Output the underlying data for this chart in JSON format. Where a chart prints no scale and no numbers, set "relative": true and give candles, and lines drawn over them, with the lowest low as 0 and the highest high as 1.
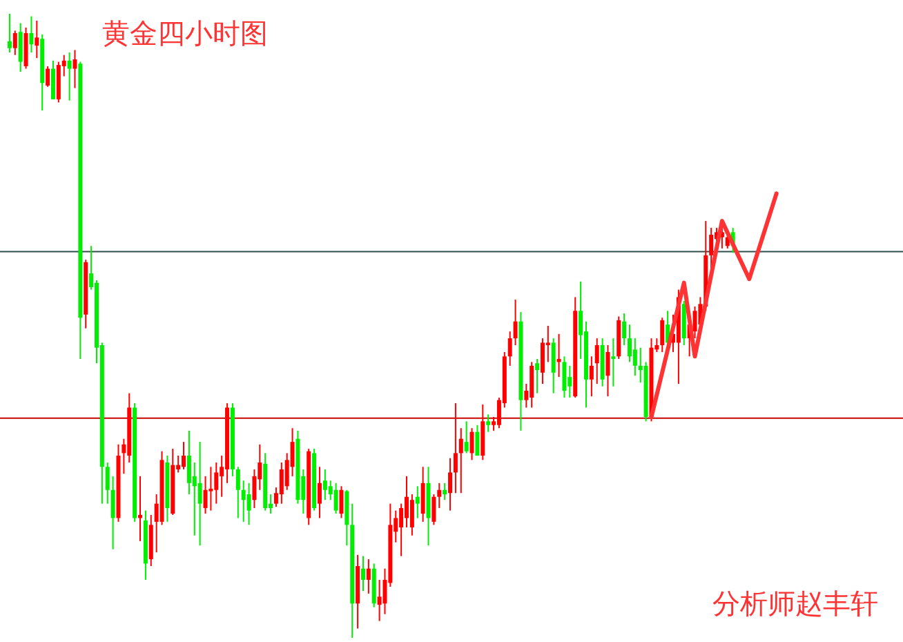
{
  "chart_data": {
    "type": "candlestick",
    "relative": true,
    "title": "黄金四小时图",
    "annotations": [
      "分析师赵丰轩"
    ],
    "categories": [
      null,
      null,
      null,
      null,
      null,
      null,
      null,
      null,
      null,
      null,
      null,
      null,
      null,
      null,
      null,
      null,
      null,
      null,
      null,
      null,
      null,
      null,
      null,
      null,
      null,
      null,
      null,
      null,
      null,
      null,
      null,
      null,
      null,
      null,
      null,
      null,
      null,
      null,
      null,
      null,
      null,
      null,
      null,
      null,
      null,
      null,
      null,
      null,
      null,
      null,
      null,
      null,
      null,
      null,
      null,
      null,
      null,
      null,
      null,
      null,
      null,
      null,
      null,
      null,
      null,
      null,
      null,
      null,
      null,
      null,
      null,
      null,
      null,
      null,
      null,
      null,
      null,
      null,
      null,
      null,
      null,
      null,
      null,
      null,
      null,
      null,
      null,
      null,
      null,
      null,
      null,
      null,
      null,
      null,
      null,
      null,
      null,
      null,
      null,
      null,
      null,
      null,
      null,
      null,
      null,
      null,
      null,
      null,
      null,
      null,
      null,
      null,
      null,
      null,
      null,
      null,
      null,
      null,
      null,
      null,
      null,
      null,
      null,
      null,
      null,
      null,
      null,
      null,
      null,
      null,
      null,
      null,
      null,
      null,
      null,
      null,
      null,
      null,
      null,
      null,
      null,
      null
    ],
    "ohlc": [
      [
        0.956,
        1,
        0.938,
        0.945
      ],
      [
        0.945,
        0.973,
        0.934,
        0.969
      ],
      [
        0.971,
        0.985,
        0.907,
        0.923
      ],
      [
        0.916,
        0.978,
        0.912,
        0.969
      ],
      [
        0.969,
        0.996,
        0.938,
        0.951
      ],
      [
        0.949,
        0.989,
        0.929,
        0.962
      ],
      [
        0.96,
        0.967,
        0.845,
        0.889
      ],
      [
        0.885,
        0.916,
        0.883,
        0.912
      ],
      [
        0.912,
        0.925,
        0.863,
        0.863
      ],
      [
        0.863,
        0.923,
        0.858,
        0.918
      ],
      [
        0.916,
        0.934,
        0.9,
        0.925
      ],
      [
        0.925,
        0.938,
        0.861,
        0.912
      ],
      [
        0.912,
        0.942,
        0.881,
        0.927
      ],
      [
        0.92,
        0.923,
        0.447,
        0.513
      ],
      [
        0.518,
        0.606,
        0.496,
        0.602
      ],
      [
        0.584,
        0.628,
        0.558,
        0.562
      ],
      [
        0.569,
        0.573,
        0.44,
        0.465
      ],
      [
        0.469,
        0.473,
        0.215,
        0.274
      ],
      [
        0.274,
        0.281,
        0.215,
        0.237
      ],
      [
        0.237,
        0.259,
        0.142,
        0.192
      ],
      [
        0.192,
        0.31,
        0.186,
        0.292
      ],
      [
        0.296,
        0.319,
        0.263,
        0.31
      ],
      [
        0.292,
        0.392,
        0.281,
        0.369
      ],
      [
        0.369,
        0.376,
        0.186,
        0.192
      ],
      [
        0.192,
        0.259,
        0.155,
        0.197
      ],
      [
        0.188,
        0.204,
        0.093,
        0.119
      ],
      [
        0.126,
        0.197,
        0.115,
        0.181
      ],
      [
        0.186,
        0.23,
        0.137,
        0.215
      ],
      [
        0.186,
        0.299,
        0.181,
        0.285
      ],
      [
        0.281,
        0.292,
        0.186,
        0.208
      ],
      [
        0.199,
        0.303,
        0.197,
        0.277
      ],
      [
        0.27,
        0.292,
        0.265,
        0.277
      ],
      [
        0.274,
        0.314,
        0.27,
        0.292
      ],
      [
        0.292,
        0.332,
        0.23,
        0.248
      ],
      [
        0.259,
        0.281,
        0.164,
        0.243
      ],
      [
        0.248,
        0.314,
        0.148,
        0.215
      ],
      [
        0.208,
        0.259,
        0.199,
        0.237
      ],
      [
        0.235,
        0.274,
        0.204,
        0.239
      ],
      [
        0.237,
        0.281,
        0.215,
        0.265
      ],
      [
        0.259,
        0.292,
        0.226,
        0.274
      ],
      [
        0.27,
        0.376,
        0.248,
        0.369
      ],
      [
        0.369,
        0.376,
        0.259,
        0.27
      ],
      [
        0.27,
        0.274,
        0.192,
        0.237
      ],
      [
        0.237,
        0.252,
        0.186,
        0.221
      ],
      [
        0.23,
        0.248,
        0.181,
        0.204
      ],
      [
        0.221,
        0.27,
        0.208,
        0.259
      ],
      [
        0.254,
        0.31,
        0.237,
        0.281
      ],
      [
        0.279,
        0.296,
        0.204,
        0.208
      ],
      [
        0.215,
        0.23,
        0.199,
        0.208
      ],
      [
        0.215,
        0.241,
        0.21,
        0.232
      ],
      [
        0.23,
        0.281,
        0.215,
        0.27
      ],
      [
        0.243,
        0.296,
        0.237,
        0.285
      ],
      [
        0.274,
        0.336,
        0.259,
        0.314
      ],
      [
        0.319,
        0.332,
        0.215,
        0.221
      ],
      [
        0.259,
        0.27,
        0.199,
        0.221
      ],
      [
        0.192,
        0.303,
        0.181,
        0.299
      ],
      [
        0.296,
        0.303,
        0.204,
        0.208
      ],
      [
        0.215,
        0.274,
        0.192,
        0.248
      ],
      [
        0.252,
        0.27,
        0.221,
        0.237
      ],
      [
        0.243,
        0.252,
        0.221,
        0.23
      ],
      [
        0.237,
        0.248,
        0.199,
        0.204
      ],
      [
        0.199,
        0.243,
        0.192,
        0.237
      ],
      [
        0.235,
        0.237,
        0.148,
        0.181
      ],
      [
        0.181,
        0.215,
        0,
        0.055
      ],
      [
        0.055,
        0.133,
        0.015,
        0.115
      ],
      [
        0.111,
        0.131,
        0.075,
        0.093
      ],
      [
        0.093,
        0.126,
        0.071,
        0.111
      ],
      [
        0.111,
        0.119,
        0.049,
        0.055
      ],
      [
        0.053,
        0.093,
        0.027,
        0.066
      ],
      [
        0.055,
        0.111,
        0.038,
        0.093
      ],
      [
        0.088,
        0.215,
        0.082,
        0.181
      ],
      [
        0.17,
        0.204,
        0.153,
        0.192
      ],
      [
        0.177,
        0.215,
        0.131,
        0.208
      ],
      [
        0.192,
        0.259,
        0.177,
        0.226
      ],
      [
        0.177,
        0.23,
        0.164,
        0.221
      ],
      [
        0.226,
        0.243,
        0.192,
        0.215
      ],
      [
        0.199,
        0.274,
        0.186,
        0.248
      ],
      [
        0.248,
        0.274,
        0.148,
        0.192
      ],
      [
        0.186,
        0.23,
        0.181,
        0.226
      ],
      [
        0.226,
        0.248,
        0.208,
        0.237
      ],
      [
        0.237,
        0.248,
        0.221,
        0.23
      ],
      [
        0.232,
        0.288,
        0.204,
        0.265
      ],
      [
        0.265,
        0.376,
        0.232,
        0.296
      ],
      [
        0.296,
        0.336,
        0.232,
        0.319
      ],
      [
        0.314,
        0.347,
        0.296,
        0.299
      ],
      [
        0.296,
        0.336,
        0.285,
        0.33
      ],
      [
        0.33,
        0.341,
        0.292,
        0.292
      ],
      [
        0.292,
        0.374,
        0.285,
        0.347
      ],
      [
        0.347,
        0.358,
        0.33,
        0.341
      ],
      [
        0.341,
        0.354,
        0.332,
        0.347
      ],
      [
        0.341,
        0.385,
        0.336,
        0.381
      ],
      [
        0.376,
        0.458,
        0.369,
        0.451
      ],
      [
        0.451,
        0.491,
        0.436,
        0.48
      ],
      [
        0.48,
        0.542,
        0.469,
        0.507
      ],
      [
        0.507,
        0.522,
        0.332,
        0.381
      ],
      [
        0.381,
        0.407,
        0.369,
        0.396
      ],
      [
        0.385,
        0.442,
        0.369,
        0.436
      ],
      [
        0.44,
        0.447,
        0.392,
        0.429
      ],
      [
        0.425,
        0.48,
        0.407,
        0.473
      ],
      [
        0.469,
        0.5,
        0.442,
        0.473
      ],
      [
        0.473,
        0.48,
        0.392,
        0.425
      ],
      [
        0.442,
        0.487,
        0.418,
        0.447
      ],
      [
        0.442,
        0.451,
        0.385,
        0.396
      ],
      [
        0.418,
        0.436,
        0.385,
        0.403
      ],
      [
        0.387,
        0.546,
        0.385,
        0.524
      ],
      [
        0.524,
        0.571,
        0.447,
        0.485
      ],
      [
        0.491,
        0.507,
        0.369,
        0.414
      ],
      [
        0.414,
        0.451,
        0.387,
        0.436
      ],
      [
        0.44,
        0.48,
        0.407,
        0.469
      ],
      [
        0.469,
        0.48,
        0.403,
        0.414
      ],
      [
        0.42,
        0.469,
        0.387,
        0.458
      ],
      [
        0.451,
        0.48,
        0.403,
        0.447
      ],
      [
        0.451,
        0.515,
        0.447,
        0.509
      ],
      [
        0.507,
        0.52,
        0.469,
        0.48
      ],
      [
        0.48,
        0.502,
        0.442,
        0.451
      ],
      [
        0.462,
        0.48,
        0.42,
        0.436
      ],
      [
        0.436,
        0.465,
        0.409,
        0.429
      ],
      [
        0.436,
        0.442,
        0.347,
        0.354
      ],
      [
        0.354,
        0.48,
        0.347,
        0.465
      ],
      [
        0.462,
        0.48,
        0.458,
        0.469
      ],
      [
        0.469,
        0.513,
        0.458,
        0.509
      ],
      [
        0.502,
        0.524,
        0.469,
        0.473
      ],
      [
        0.473,
        0.518,
        0.458,
        0.487
      ],
      [
        0.473,
        0.558,
        0.407,
        0.546
      ],
      [
        0.535,
        0.54,
        0.469,
        0.48
      ],
      [
        0.48,
        0.513,
        0.451,
        0.502
      ],
      [
        0.491,
        0.531,
        0.48,
        0.524
      ],
      [
        0.502,
        0.546,
        0.496,
        0.535
      ],
      [
        0.531,
        0.668,
        0.524,
        0.613
      ],
      [
        0.613,
        0.657,
        0.591,
        0.646
      ],
      [
        0.639,
        0.657,
        0.624,
        0.65
      ],
      [
        0.642,
        0.668,
        0.624,
        0.65
      ],
      [
        0.628,
        0.65,
        0.624,
        0.642
      ],
      [
        0.65,
        0.657,
        0.617,
        0.628
      ],
      null,
      null,
      null,
      null,
      null,
      null,
      null,
      null
    ],
    "colors": [
      "#00ee00",
      "#ff0000",
      "#00ee00",
      "#ff0000",
      "#00ee00",
      "#ff0000",
      "#00ee00",
      "#ff0000",
      "#00ee00",
      "#ff0000",
      "#ff0000",
      "#00ee00",
      "#ff0000",
      "#00ee00",
      "#ff0000",
      "#00ee00",
      "#00ee00",
      "#00ee00",
      "#00ee00",
      "#00ee00",
      "#ff0000",
      "#ff0000",
      "#ff0000",
      "#00ee00",
      "#ff0000",
      "#00ee00",
      "#ff0000",
      "#ff0000",
      "#ff0000",
      "#00ee00",
      "#ff0000",
      "#ff0000",
      "#ff0000",
      "#00ee00",
      "#00ee00",
      "#00ee00",
      "#ff0000",
      "#ff0000",
      "#ff0000",
      "#ff0000",
      "#ff0000",
      "#00ee00",
      "#00ee00",
      "#00ee00",
      "#00ee00",
      "#ff0000",
      "#ff0000",
      "#00ee00",
      "#00ee00",
      "#ff0000",
      "#ff0000",
      "#ff0000",
      "#ff0000",
      "#00ee00",
      "#00ee00",
      "#ff0000",
      "#00ee00",
      "#ff0000",
      "#00ee00",
      "#00ee00",
      "#00ee00",
      "#ff0000",
      "#00ee00",
      "#00ee00",
      "#ff0000",
      "#00ee00",
      "#ff0000",
      "#00ee00",
      "#ff0000",
      "#ff0000",
      "#ff0000",
      "#ff0000",
      "#ff0000",
      "#ff0000",
      "#ff0000",
      "#00ee00",
      "#ff0000",
      "#00ee00",
      "#ff0000",
      "#ff0000",
      "#00ee00",
      "#ff0000",
      "#ff0000",
      "#ff0000",
      "#00ee00",
      "#ff0000",
      "#00ee00",
      "#ff0000",
      "#00ee00",
      "#ff0000",
      "#ff0000",
      "#ff0000",
      "#ff0000",
      "#ff0000",
      "#00ee00",
      "#ff0000",
      "#ff0000",
      "#00ee00",
      "#ff0000",
      "#ff0000",
      "#00ee00",
      "#ff0000",
      "#00ee00",
      "#00ee00",
      "#ff0000",
      "#00ee00",
      "#00ee00",
      "#ff0000",
      "#ff0000",
      "#00ee00",
      "#ff0000",
      "#00ee00",
      "#ff0000",
      "#00ee00",
      "#00ee00",
      "#00ee00",
      "#00ee00",
      "#00ee00",
      "#ff0000",
      "#ff0000",
      "#ff0000",
      "#00ee00",
      "#ff0000",
      "#ff0000",
      "#00ee00",
      "#ff0000",
      "#ff0000",
      "#ff0000",
      "#ff0000",
      "#ff0000",
      "#ff0000",
      "#ff0000",
      "#ff0000",
      "#00ee00",
      null,
      null,
      null,
      null,
      null,
      null,
      null,
      null
    ],
    "series": [
      {
        "type": "line",
        "color": "#ff3333",
        "values": [
          null,
          null,
          null,
          null,
          null,
          null,
          null,
          null,
          null,
          null,
          null,
          null,
          null,
          null,
          null,
          null,
          null,
          null,
          null,
          null,
          null,
          null,
          null,
          null,
          null,
          null,
          null,
          null,
          null,
          null,
          null,
          null,
          null,
          null,
          null,
          null,
          null,
          null,
          null,
          null,
          null,
          null,
          null,
          null,
          null,
          null,
          null,
          null,
          null,
          null,
          null,
          null,
          null,
          null,
          null,
          null,
          null,
          null,
          null,
          null,
          null,
          null,
          null,
          null,
          null,
          null,
          null,
          null,
          null,
          null,
          null,
          null,
          null,
          null,
          null,
          null,
          null,
          null,
          null,
          null,
          null,
          null,
          null,
          null,
          null,
          null,
          null,
          null,
          null,
          null,
          null,
          null,
          null,
          null,
          null,
          null,
          null,
          null,
          null,
          null,
          null,
          null,
          null,
          null,
          null,
          null,
          null,
          null,
          null,
          null,
          null,
          null,
          null,
          null,
          null,
          null,
          null,
          null,
          0.354,
          null,
          null,
          null,
          null,
          null,
          0.569,
          null,
          0.451,
          null,
          null,
          null,
          null,
          0.668,
          null,
          null,
          null,
          null,
          0.575,
          null,
          null,
          null,
          null,
          0.712
        ]
      }
    ],
    "ref_lines": [
      {
        "axis": "y",
        "value": 0.619,
        "color": "#2f4f4f"
      },
      {
        "axis": "y",
        "value": 0.352,
        "color": "#cc0000"
      }
    ]
  }
}
